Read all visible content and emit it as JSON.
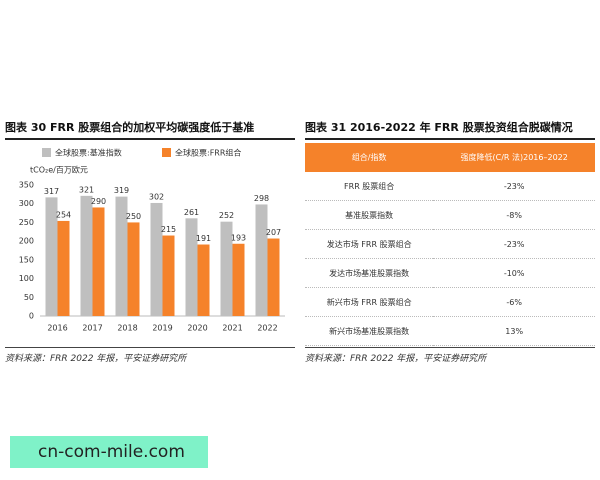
{
  "figure_left": {
    "title": "图表 30  FRR 股票组合的加权平均碳强度低于基准",
    "source": "资料来源：FRR 2022 年报，平安证券研究所"
  },
  "chart_data": {
    "type": "bar",
    "y_label": "tCO₂e/百万欧元",
    "categories": [
      "2016",
      "2017",
      "2018",
      "2019",
      "2020",
      "2021",
      "2022"
    ],
    "series": [
      {
        "name": "全球股票:基准指数",
        "color": "#bfbfbf",
        "values": [
          317,
          321,
          319,
          302,
          261,
          252,
          298
        ]
      },
      {
        "name": "全球股票:FRR组合",
        "color": "#f5822a",
        "values": [
          254,
          290,
          250,
          215,
          191,
          193,
          207
        ]
      }
    ],
    "ylim": [
      0,
      350
    ],
    "yticks": [
      0,
      50,
      100,
      150,
      200,
      250,
      300,
      350
    ],
    "grid": false
  },
  "figure_right": {
    "title": "图表 31  2016-2022 年 FRR 股票投资组合脱碳情况",
    "source": "资料来源：FRR 2022 年报，平安证券研究所"
  },
  "table": {
    "header": [
      "组合/指数",
      "强度降低(C/R 法)2016–2022"
    ],
    "rows": [
      [
        "FRR 股票组合",
        "-23%"
      ],
      [
        "基准股票指数",
        "-8%"
      ],
      [
        "发达市场 FRR 股票组合",
        "-23%"
      ],
      [
        "发达市场基准股票指数",
        "-10%"
      ],
      [
        "新兴市场 FRR 股票组合",
        "-6%"
      ],
      [
        "新兴市场基准股票指数",
        "13%"
      ]
    ]
  },
  "watermark": "cn-com-mile.com"
}
